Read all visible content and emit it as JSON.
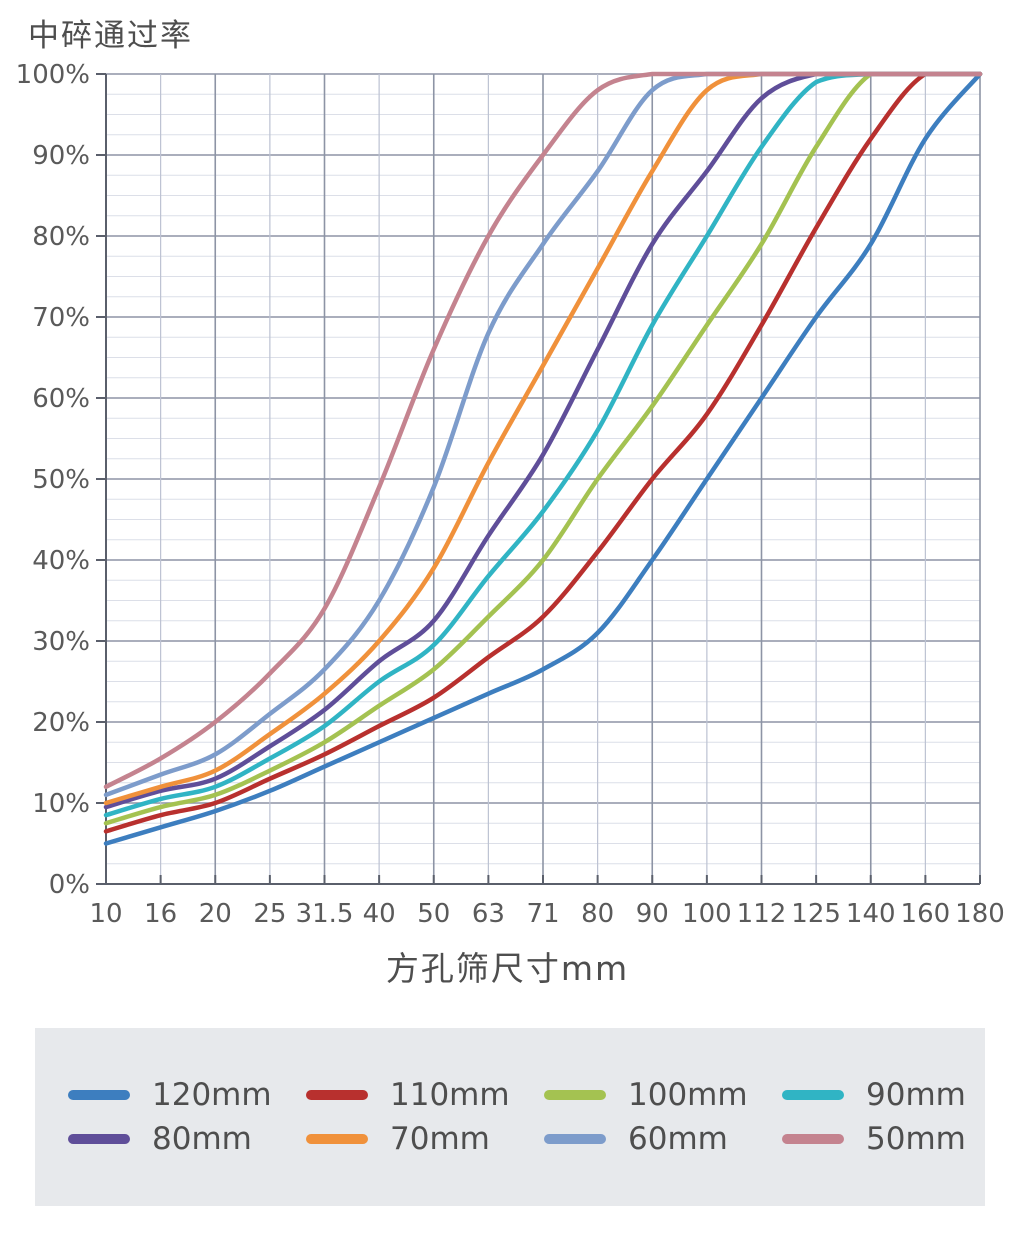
{
  "page": {
    "title": "中碎通过率",
    "x_axis_title": "方孔筛尺寸mm"
  },
  "chart_data": {
    "type": "line",
    "title": "中碎通过率",
    "xlabel": "方孔筛尺寸mm",
    "ylabel": "",
    "categories": [
      "10",
      "16",
      "20",
      "25",
      "31.5",
      "40",
      "50",
      "63",
      "71",
      "80",
      "90",
      "100",
      "112",
      "125",
      "140",
      "160",
      "180"
    ],
    "y_tick_labels": [
      "0%",
      "10%",
      "20%",
      "30%",
      "40%",
      "50%",
      "60%",
      "70%",
      "80%",
      "90%",
      "100%"
    ],
    "ylim": [
      0,
      100
    ],
    "y_major_step": 10,
    "y_minor_step": 2.5,
    "grid": "on",
    "legend_position": "bottom",
    "series": [
      {
        "name": "120mm",
        "color": "#3d7ebf",
        "values": [
          5,
          7,
          9,
          11.5,
          14.5,
          17.5,
          20.5,
          23.5,
          26.5,
          31,
          40,
          50,
          60,
          70,
          79,
          92,
          100
        ]
      },
      {
        "name": "110mm",
        "color": "#b8302e",
        "values": [
          6.5,
          8.5,
          10,
          13,
          16,
          19.5,
          23,
          28,
          33,
          41,
          50,
          58,
          69,
          81,
          92,
          100,
          100
        ]
      },
      {
        "name": "100mm",
        "color": "#a4c251",
        "values": [
          7.5,
          9.5,
          11,
          14,
          17.5,
          22,
          26.5,
          33,
          40,
          50,
          59,
          69,
          79,
          91,
          100,
          100,
          100
        ]
      },
      {
        "name": "90mm",
        "color": "#30b4c4",
        "values": [
          8.5,
          10.5,
          12,
          15.5,
          19.5,
          25,
          29.5,
          38,
          46,
          56,
          69,
          80,
          91,
          99,
          100,
          100,
          100
        ]
      },
      {
        "name": "80mm",
        "color": "#5f4e99",
        "values": [
          9.5,
          11.5,
          13,
          17,
          21.5,
          27.5,
          32.5,
          43,
          53,
          66,
          79,
          88,
          97,
          100,
          100,
          100,
          100
        ]
      },
      {
        "name": "70mm",
        "color": "#f0913b",
        "values": [
          10,
          12,
          14,
          18.5,
          23.5,
          30,
          39,
          52,
          64,
          76,
          88,
          98,
          100,
          100,
          100,
          100,
          100
        ]
      },
      {
        "name": "60mm",
        "color": "#7d9ccb",
        "values": [
          11,
          13.5,
          16,
          21,
          26.5,
          35,
          49,
          68,
          79,
          88,
          98,
          100,
          100,
          100,
          100,
          100,
          100
        ]
      },
      {
        "name": "50mm",
        "color": "#c4838f",
        "values": [
          12,
          15.5,
          20,
          26,
          34,
          49,
          66,
          80,
          90,
          98,
          100,
          100,
          100,
          100,
          100,
          100,
          100
        ]
      }
    ],
    "colors": {
      "grid_major": "#8d94a5",
      "grid_minor_h": "#dcdfe8",
      "grid_minor_v": "#bcc2d2",
      "axis": "#5a5f6b",
      "tick_text": "#5a5a5a",
      "legend_bg": "#e7e9ec",
      "text": "#4e4e4e"
    }
  }
}
